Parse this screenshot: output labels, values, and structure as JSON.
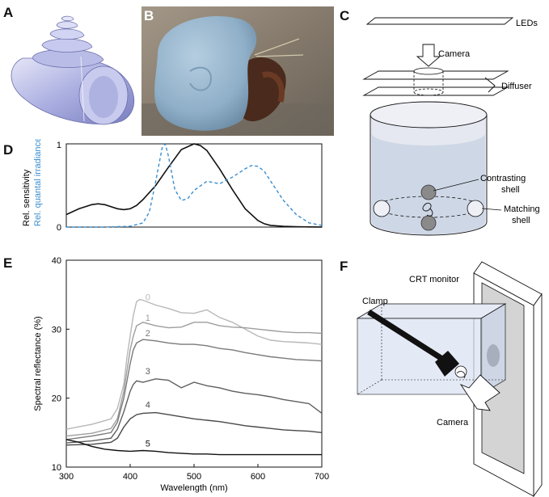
{
  "panels": {
    "A": {
      "label": "A"
    },
    "B": {
      "label": "B"
    },
    "C": {
      "label": "C",
      "leds": "LEDs",
      "camera": "Camera",
      "diffuser": "Diffuser",
      "contrasting_line1": "Contrasting",
      "contrasting_line2": "shell",
      "matching_line1": "Matching",
      "matching_line2": "shell"
    },
    "D": {
      "label": "D"
    },
    "E": {
      "label": "E"
    },
    "F": {
      "label": "F",
      "crt": "CRT monitor",
      "clamp": "Clamp",
      "camera": "Camera"
    }
  },
  "chart_data": [
    {
      "type": "line",
      "panel": "D",
      "ylabel": "Rel. sensitivity",
      "ylabel2": "Rel. quantal irradiance",
      "xlim": [
        300,
        700
      ],
      "ylim": [
        0,
        1
      ],
      "y_ticks": [
        "0",
        "1"
      ],
      "series": [
        {
          "color": "#111111",
          "dash": false,
          "x": [
            300,
            320,
            340,
            350,
            360,
            380,
            390,
            400,
            410,
            420,
            440,
            460,
            480,
            500,
            510,
            520,
            540,
            560,
            580,
            600,
            610,
            620,
            640,
            660,
            680,
            700
          ],
          "y": [
            0.15,
            0.22,
            0.27,
            0.28,
            0.27,
            0.22,
            0.21,
            0.22,
            0.26,
            0.33,
            0.5,
            0.72,
            0.93,
            1.0,
            0.98,
            0.92,
            0.7,
            0.45,
            0.22,
            0.08,
            0.04,
            0.02,
            0.01,
            0.005,
            0.002,
            0.001
          ]
        },
        {
          "color": "#3a8ecf",
          "dash": true,
          "x": [
            300,
            360,
            400,
            420,
            430,
            440,
            450,
            455,
            460,
            470,
            480,
            490,
            500,
            520,
            540,
            560,
            580,
            590,
            600,
            610,
            620,
            640,
            660,
            680,
            700
          ],
          "y": [
            0,
            0,
            0.01,
            0.05,
            0.18,
            0.55,
            0.95,
            1.0,
            0.85,
            0.45,
            0.32,
            0.34,
            0.44,
            0.55,
            0.52,
            0.6,
            0.7,
            0.74,
            0.73,
            0.67,
            0.55,
            0.32,
            0.15,
            0.05,
            0.02
          ]
        }
      ]
    },
    {
      "type": "line",
      "panel": "E",
      "ylabel": "Spectral reflectance (%)",
      "xlabel": "Wavelength (nm)",
      "xlim": [
        300,
        700
      ],
      "ylim": [
        10,
        40
      ],
      "x_ticks": [
        "300",
        "400",
        "500",
        "600",
        "700"
      ],
      "y_ticks": [
        "10",
        "20",
        "30",
        "40"
      ],
      "series": [
        {
          "name": "0",
          "color": "#b8b8b8",
          "x": [
            300,
            340,
            370,
            380,
            390,
            395,
            400,
            405,
            410,
            415,
            420,
            440,
            460,
            480,
            500,
            520,
            540,
            560,
            580,
            600,
            620,
            640,
            660,
            680,
            700
          ],
          "y": [
            15.5,
            16.2,
            17.0,
            18.5,
            22,
            26,
            29,
            32,
            34,
            34.3,
            34.2,
            33.5,
            33,
            32.4,
            32.3,
            32.8,
            31.7,
            31,
            30,
            29,
            28.4,
            28.2,
            28.1,
            28.0,
            27.8
          ]
        },
        {
          "name": "1",
          "color": "#9e9e9e",
          "x": [
            300,
            340,
            370,
            380,
            390,
            400,
            405,
            410,
            420,
            440,
            460,
            480,
            500,
            520,
            540,
            560,
            580,
            600,
            620,
            640,
            660,
            680,
            700
          ],
          "y": [
            14.5,
            14.9,
            15.6,
            17,
            21,
            27,
            29,
            30.5,
            31,
            30.5,
            30.2,
            30.3,
            31,
            31,
            30.5,
            30.3,
            30.2,
            30,
            29.8,
            29.6,
            29.5,
            29.5,
            29.4
          ]
        },
        {
          "name": "2",
          "color": "#7a7a7a",
          "x": [
            300,
            340,
            370,
            380,
            390,
            400,
            405,
            410,
            420,
            440,
            460,
            480,
            500,
            520,
            540,
            560,
            580,
            600,
            620,
            640,
            660,
            680,
            700
          ],
          "y": [
            14,
            14.5,
            15,
            16.5,
            20,
            25,
            27,
            28,
            28.5,
            28.3,
            28,
            27.8,
            27.8,
            27.6,
            27.2,
            27,
            26.6,
            26.3,
            26,
            25.8,
            25.6,
            25.5,
            25.4
          ]
        },
        {
          "name": "3",
          "color": "#5e5e5e",
          "x": [
            300,
            340,
            370,
            380,
            390,
            400,
            405,
            410,
            420,
            440,
            460,
            480,
            500,
            520,
            540,
            560,
            580,
            600,
            620,
            640,
            660,
            680,
            700
          ],
          "y": [
            13.5,
            13.8,
            14.2,
            15.5,
            18,
            21,
            22,
            22.5,
            22.3,
            22.8,
            22.6,
            21.5,
            22.3,
            21.8,
            21.5,
            21,
            20.7,
            20.5,
            20.2,
            19.8,
            19.5,
            19.2,
            17.8
          ]
        },
        {
          "name": "4",
          "color": "#484848",
          "x": [
            300,
            340,
            370,
            380,
            390,
            400,
            410,
            420,
            440,
            460,
            480,
            500,
            520,
            540,
            560,
            580,
            600,
            620,
            640,
            660,
            680,
            700
          ],
          "y": [
            13.2,
            13.3,
            13.6,
            14.2,
            15.8,
            17,
            17.6,
            17.8,
            17.9,
            17.6,
            17.3,
            17,
            16.8,
            16.6,
            16.3,
            16.0,
            15.8,
            15.6,
            15.4,
            15.3,
            15.2,
            15.0
          ]
        },
        {
          "name": "5",
          "color": "#111111",
          "x": [
            300,
            320,
            340,
            360,
            380,
            400,
            420,
            440,
            460,
            480,
            500,
            520,
            540,
            560,
            580,
            600,
            620,
            640,
            660,
            680,
            700
          ],
          "y": [
            14.0,
            13.6,
            13.0,
            12.6,
            12.4,
            12.3,
            12.4,
            12.3,
            12.1,
            12.0,
            11.9,
            11.9,
            11.8,
            11.8,
            11.8,
            11.8,
            11.8,
            11.8,
            11.8,
            11.8,
            11.8
          ]
        }
      ]
    }
  ]
}
